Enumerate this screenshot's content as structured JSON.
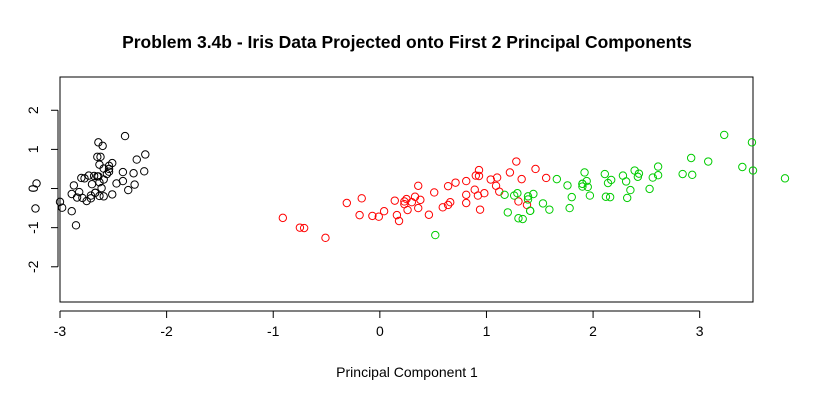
{
  "chart_data": {
    "type": "scatter",
    "title": "Problem 3.4b - Iris Data Projected onto First 2 Principal Components",
    "xlabel": "Principal Component 1",
    "ylabel": "",
    "xlim": [
      -3,
      3.5
    ],
    "ylim": [
      -2.9,
      2.85
    ],
    "xticks": [
      -3,
      -2,
      -1,
      0,
      1,
      2,
      3
    ],
    "yticks": [
      -2,
      -1,
      0,
      1,
      2
    ],
    "grid": false,
    "legend": "none",
    "series": [
      {
        "color": "#000000",
        "points": [
          [
            -2.68,
            0.32
          ],
          [
            -2.71,
            -0.18
          ],
          [
            -2.89,
            -0.14
          ],
          [
            -2.75,
            -0.32
          ],
          [
            -2.73,
            0.33
          ],
          [
            -2.28,
            0.74
          ],
          [
            -2.82,
            -0.09
          ],
          [
            -2.63,
            0.16
          ],
          [
            -2.89,
            -0.58
          ],
          [
            -2.67,
            -0.11
          ],
          [
            -2.51,
            0.65
          ],
          [
            -2.61,
            0.01
          ],
          [
            -2.79,
            -0.24
          ],
          [
            -3.23,
            -0.51
          ],
          [
            -2.64,
            1.18
          ],
          [
            -2.39,
            1.34
          ],
          [
            -2.62,
            0.81
          ],
          [
            -2.65,
            0.31
          ],
          [
            -2.2,
            0.87
          ],
          [
            -2.59,
            0.51
          ],
          [
            -2.31,
            0.39
          ],
          [
            -2.54,
            0.43
          ],
          [
            -3.22,
            0.13
          ],
          [
            -2.3,
            0.1
          ],
          [
            -2.36,
            -0.04
          ],
          [
            -2.51,
            -0.15
          ],
          [
            -2.47,
            0.13
          ],
          [
            -2.56,
            0.37
          ],
          [
            -2.64,
            0.31
          ],
          [
            -2.63,
            -0.19
          ],
          [
            -2.59,
            -0.2
          ],
          [
            -2.41,
            0.42
          ],
          [
            -2.65,
            0.81
          ],
          [
            -2.6,
            1.09
          ],
          [
            -2.67,
            -0.11
          ],
          [
            -2.87,
            0.08
          ],
          [
            -2.63,
            0.61
          ],
          [
            -2.8,
            0.27
          ],
          [
            -2.98,
            -0.49
          ],
          [
            -2.59,
            0.23
          ],
          [
            -2.77,
            0.26
          ],
          [
            -2.85,
            -0.94
          ],
          [
            -3.0,
            -0.34
          ],
          [
            -2.41,
            0.19
          ],
          [
            -2.21,
            0.44
          ],
          [
            -2.71,
            -0.25
          ],
          [
            -2.54,
            0.5
          ],
          [
            -2.84,
            -0.23
          ],
          [
            -2.54,
            0.58
          ],
          [
            -2.7,
            0.11
          ]
        ]
      },
      {
        "color": "#ff0000",
        "points": [
          [
            1.28,
            0.69
          ],
          [
            0.93,
            0.32
          ],
          [
            1.46,
            0.5
          ],
          [
            0.18,
            -0.83
          ],
          [
            1.09,
            0.07
          ],
          [
            0.64,
            -0.42
          ],
          [
            1.1,
            0.28
          ],
          [
            -0.75,
            -1.0
          ],
          [
            1.04,
            0.23
          ],
          [
            -0.01,
            -0.72
          ],
          [
            -0.51,
            -1.26
          ],
          [
            0.51,
            -0.1
          ],
          [
            0.26,
            -0.55
          ],
          [
            0.98,
            -0.12
          ],
          [
            -0.17,
            -0.25
          ],
          [
            0.93,
            0.47
          ],
          [
            0.66,
            -0.35
          ],
          [
            0.23,
            -0.33
          ],
          [
            0.94,
            -0.54
          ],
          [
            0.04,
            -0.58
          ],
          [
            1.12,
            -0.08
          ],
          [
            0.36,
            0.07
          ],
          [
            1.3,
            -0.33
          ],
          [
            0.92,
            -0.18
          ],
          [
            0.71,
            0.15
          ],
          [
            0.9,
            0.33
          ],
          [
            1.33,
            0.24
          ],
          [
            1.56,
            0.27
          ],
          [
            0.81,
            -0.16
          ],
          [
            -0.31,
            -0.37
          ],
          [
            -0.07,
            -0.7
          ],
          [
            -0.19,
            -0.68
          ],
          [
            0.14,
            -0.31
          ],
          [
            1.38,
            -0.42
          ],
          [
            0.59,
            -0.48
          ],
          [
            0.81,
            0.19
          ],
          [
            1.22,
            0.41
          ],
          [
            0.81,
            -0.37
          ],
          [
            0.25,
            -0.27
          ],
          [
            0.16,
            -0.68
          ],
          [
            0.46,
            -0.67
          ],
          [
            0.89,
            -0.03
          ],
          [
            0.23,
            -0.4
          ],
          [
            -0.71,
            -1.01
          ],
          [
            0.36,
            -0.5
          ],
          [
            0.33,
            -0.21
          ],
          [
            0.38,
            -0.29
          ],
          [
            0.64,
            0.06
          ],
          [
            -0.91,
            -0.75
          ],
          [
            0.3,
            -0.35
          ]
        ]
      },
      {
        "color": "#00cc00",
        "points": [
          [
            2.53,
            -0.01
          ],
          [
            1.41,
            -0.57
          ],
          [
            2.61,
            0.34
          ],
          [
            1.97,
            -0.18
          ],
          [
            2.35,
            -0.04
          ],
          [
            3.4,
            0.55
          ],
          [
            0.52,
            -1.19
          ],
          [
            2.93,
            0.35
          ],
          [
            2.32,
            -0.24
          ],
          [
            2.92,
            0.78
          ],
          [
            1.66,
            0.24
          ],
          [
            1.8,
            -0.22
          ],
          [
            2.17,
            0.22
          ],
          [
            1.34,
            -0.78
          ],
          [
            1.59,
            -0.54
          ],
          [
            1.9,
            0.12
          ],
          [
            1.95,
            0.04
          ],
          [
            3.49,
            1.18
          ],
          [
            3.8,
            0.26
          ],
          [
            1.3,
            -0.76
          ],
          [
            2.43,
            0.38
          ],
          [
            1.2,
            -0.61
          ],
          [
            3.5,
            0.46
          ],
          [
            1.39,
            -0.2
          ],
          [
            2.28,
            0.33
          ],
          [
            2.61,
            0.56
          ],
          [
            1.26,
            -0.18
          ],
          [
            1.29,
            -0.12
          ],
          [
            2.12,
            -0.21
          ],
          [
            2.39,
            0.46
          ],
          [
            2.84,
            0.37
          ],
          [
            3.23,
            1.37
          ],
          [
            2.16,
            -0.22
          ],
          [
            1.44,
            -0.14
          ],
          [
            1.78,
            -0.5
          ],
          [
            3.08,
            0.69
          ],
          [
            2.14,
            0.14
          ],
          [
            1.9,
            0.05
          ],
          [
            1.17,
            -0.16
          ],
          [
            2.11,
            0.37
          ],
          [
            2.31,
            0.18
          ],
          [
            1.92,
            0.41
          ],
          [
            1.41,
            -0.57
          ],
          [
            2.56,
            0.28
          ],
          [
            2.42,
            0.3
          ],
          [
            1.94,
            0.19
          ],
          [
            1.53,
            -0.38
          ],
          [
            1.76,
            0.08
          ],
          [
            1.9,
            0.12
          ],
          [
            1.39,
            -0.28
          ]
        ]
      }
    ]
  }
}
